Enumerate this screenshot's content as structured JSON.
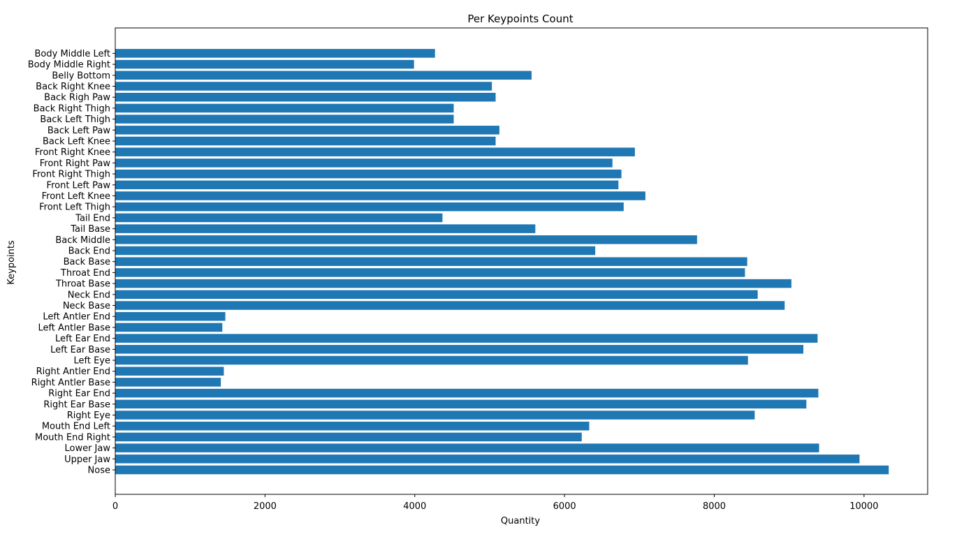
{
  "chart_data": {
    "type": "bar",
    "orientation": "horizontal",
    "title": "Per Keypoints Count",
    "xlabel": "Quantity",
    "ylabel": "Keypoints",
    "xlim": [
      0,
      10850
    ],
    "xticks": [
      0,
      2000,
      4000,
      6000,
      8000,
      10000
    ],
    "xtick_labels": [
      "0",
      "2000",
      "4000",
      "6000",
      "8000",
      "10000"
    ],
    "bar_color": "#1f77b4",
    "grid": false,
    "categories": [
      "Nose",
      "Upper Jaw",
      "Lower Jaw",
      "Mouth End Right",
      "Mouth End Left",
      "Right Eye",
      "Right Ear Base",
      "Right Ear End",
      "Right Antler Base",
      "Right Antler End",
      "Left Eye",
      "Left Ear Base",
      "Left Ear End",
      "Left Antler Base",
      "Left Antler End",
      "Neck Base",
      "Neck End",
      "Throat Base",
      "Throat End",
      "Back Base",
      "Back End",
      "Back Middle",
      "Tail Base",
      "Tail End",
      "Front Left Thigh",
      "Front Left Knee",
      "Front Left Paw",
      "Front Right Thigh",
      "Front Right Paw",
      "Front Right Knee",
      "Back Left Knee",
      "Back Left Paw",
      "Back Left Thigh",
      "Back Right Thigh",
      "Back Righ Paw",
      "Back Right Knee",
      "Belly Bottom",
      "Body Middle Right",
      "Body Middle Left"
    ],
    "values": [
      10330,
      9940,
      9400,
      6230,
      6330,
      8540,
      9230,
      9390,
      1410,
      1450,
      8450,
      9190,
      9380,
      1430,
      1470,
      8940,
      8580,
      9030,
      8410,
      8440,
      6410,
      7770,
      5610,
      4370,
      6790,
      7080,
      6720,
      6760,
      6640,
      6940,
      5080,
      5130,
      4520,
      4520,
      5080,
      5030,
      5560,
      3990,
      4270
    ]
  }
}
